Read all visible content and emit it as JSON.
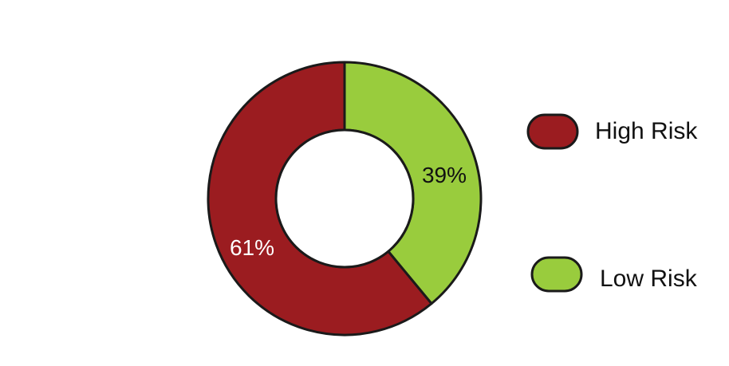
{
  "chart_data": {
    "type": "pie",
    "style": "donut",
    "categories": [
      "High Risk",
      "Low Risk"
    ],
    "values": [
      61,
      39
    ],
    "data_labels": [
      "61%",
      "39%"
    ],
    "colors": [
      "#9b1c20",
      "#99cc3d"
    ],
    "label_colors": [
      "#ffffff",
      "#111111"
    ],
    "legend": {
      "placement": "right",
      "entries": [
        "High Risk",
        "Low Risk"
      ]
    },
    "start": "top",
    "direction": "clockwise"
  }
}
